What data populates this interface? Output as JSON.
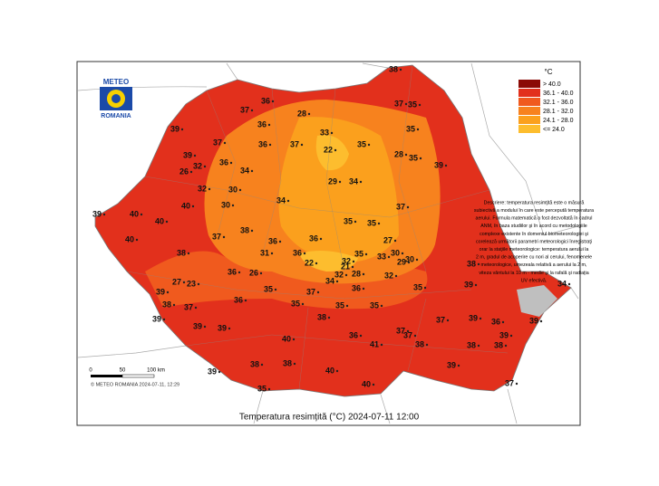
{
  "logo": {
    "top": "METEO",
    "bottom": "ROMANIA"
  },
  "legend": {
    "unit": "°C",
    "classes": [
      {
        "label": "> 40.0",
        "color": "#8b0a05"
      },
      {
        "label": "36.1 - 40.0",
        "color": "#e2301c"
      },
      {
        "label": "32.1 - 36.0",
        "color": "#f05a1e"
      },
      {
        "label": "28.1 - 32.0",
        "color": "#f7821e"
      },
      {
        "label": "24.1 - 28.0",
        "color": "#fba01d"
      },
      {
        "label": "<= 24.0",
        "color": "#fdbd2e"
      }
    ]
  },
  "description": [
    "Descriere: temperatura resimţită este o măsură",
    "subiectivă a modului în care este percepută temperatura",
    "aerului. Formula matematică a fost dezvoltată în cadrul",
    "ANM, în baza studiilor şi în acord cu metodologiile",
    "complexe existente în domeniul biometeorologiei şi",
    "corelează următorii parametri meteorologici înregistraţi",
    "orar la staţiile meteorologice: temperatura aerului la",
    "2 m, gradul de acoperire cu nori al cerului, fenomenele",
    "meteorologice, umezeala relativă a aerului la 2 m,",
    "viteza vântului la 10 m - medie şi la rafală şi radiaţia",
    "UV efectivă."
  ],
  "scale": {
    "labels": [
      "0",
      "50",
      "100 km"
    ]
  },
  "copyright": "© METEO ROMANIA 2024-07-11, 12:29",
  "title": "Temperatura resimțită (°C) 2024-07-11 12:00",
  "stations": [
    38,
    36,
    37,
    35,
    37,
    36,
    28,
    33,
    35,
    39,
    37,
    37,
    36,
    22,
    35,
    28,
    35,
    39,
    39,
    32,
    36,
    34,
    26,
    30,
    34,
    29,
    34,
    32,
    30,
    40,
    37,
    39,
    40,
    40,
    35,
    35,
    37,
    38,
    36,
    36,
    31,
    36,
    27,
    35,
    30,
    29,
    30,
    22,
    32,
    33,
    38,
    40,
    36,
    26,
    21,
    28,
    32,
    32,
    34,
    37,
    36,
    35,
    38,
    39,
    34,
    39,
    27,
    23,
    38,
    37,
    36,
    35,
    35,
    35,
    35,
    37,
    39,
    36,
    39,
    39,
    39,
    40,
    37,
    38,
    38,
    39,
    39,
    38,
    41,
    36,
    40,
    38,
    39,
    38,
    40,
    35,
    37,
    39,
    38,
    37
  ]
}
